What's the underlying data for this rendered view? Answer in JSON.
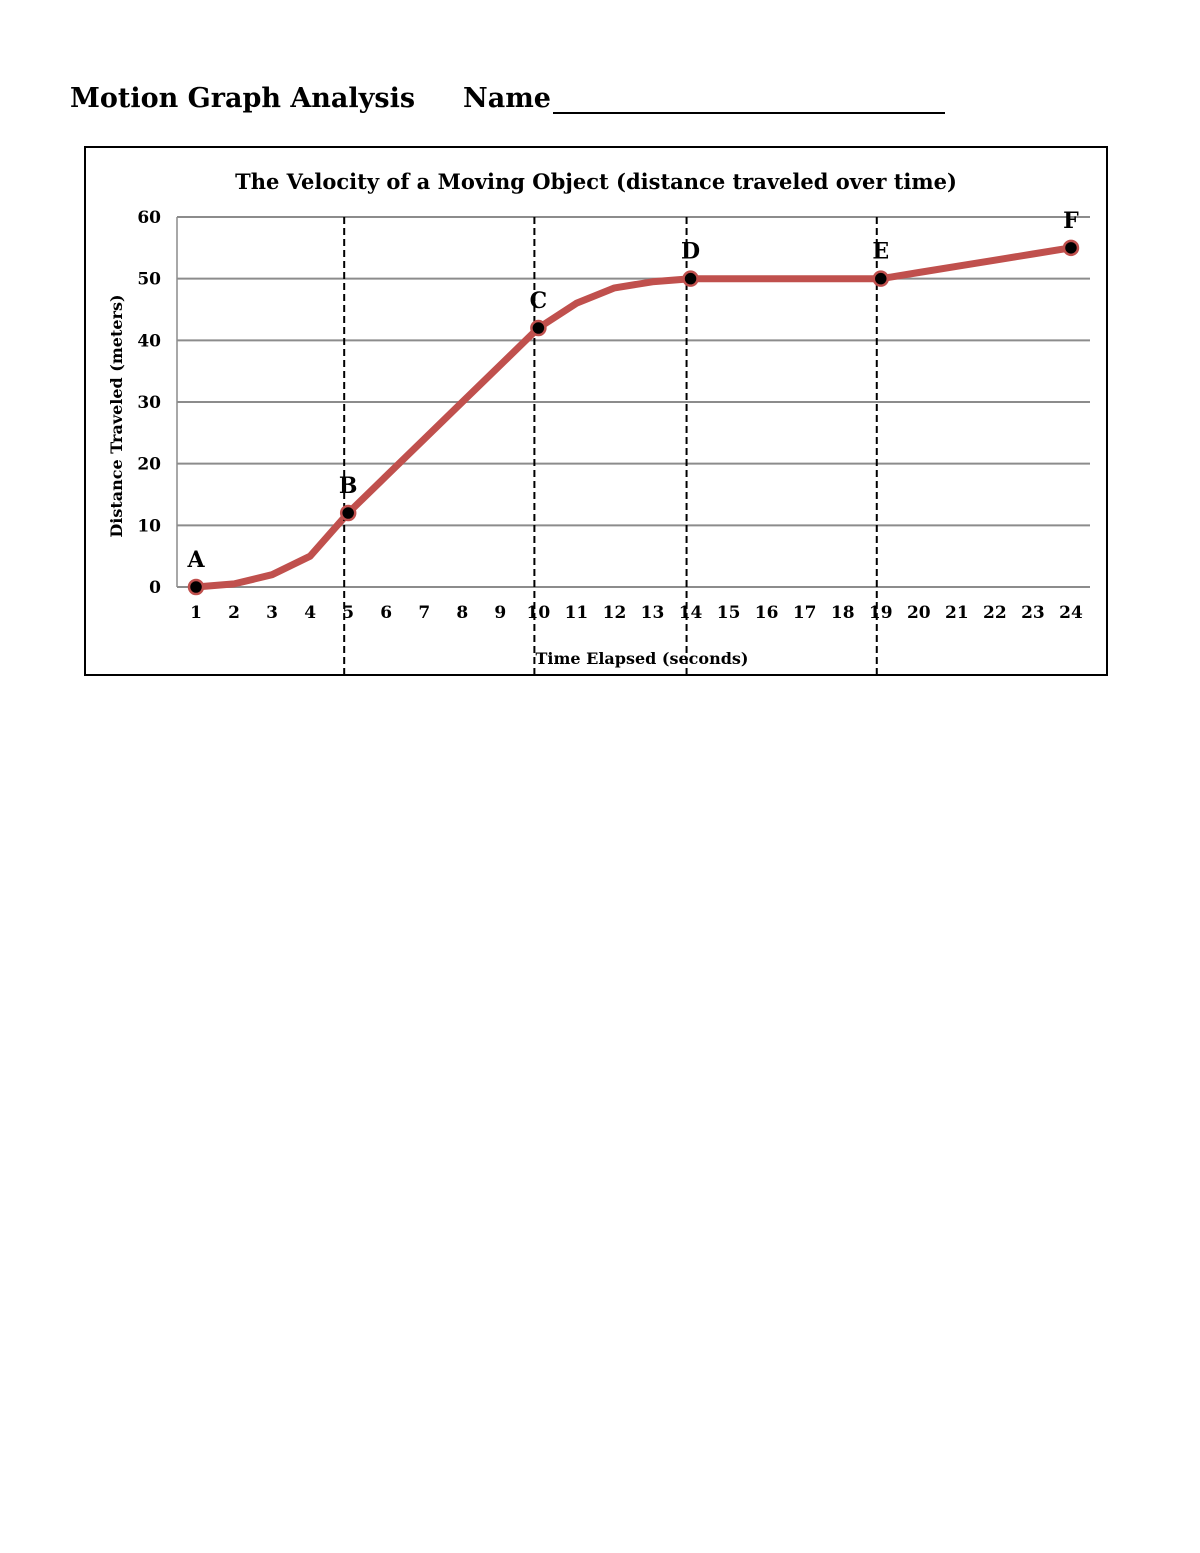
{
  "worksheet": {
    "title": "Motion Graph Analysis",
    "name_label": "Name"
  },
  "chart_data": {
    "type": "line",
    "title": "The Velocity of a Moving Object (distance traveled over time)",
    "xlabel": "Time Elapsed (seconds)",
    "ylabel": "Distance Traveled (meters)",
    "categories": [
      "1",
      "2",
      "3",
      "4",
      "5",
      "6",
      "7",
      "8",
      "9",
      "10",
      "11",
      "12",
      "13",
      "14",
      "15",
      "16",
      "17",
      "18",
      "19",
      "20",
      "21",
      "22",
      "23",
      "24"
    ],
    "x": [
      1,
      2,
      3,
      4,
      5,
      6,
      7,
      8,
      9,
      10,
      11,
      12,
      13,
      14,
      15,
      16,
      17,
      18,
      19,
      20,
      21,
      22,
      23,
      24
    ],
    "series": [
      {
        "values": [
          0,
          0.5,
          2,
          5,
          12,
          18,
          24,
          30,
          36,
          42,
          46,
          48.5,
          49.5,
          50,
          50,
          50,
          50,
          50,
          50,
          51,
          52,
          53,
          54,
          55
        ]
      }
    ],
    "ylim": [
      0,
      60
    ],
    "yticks": [
      0,
      10,
      20,
      30,
      40,
      50,
      60
    ],
    "grid": true,
    "legend": "none",
    "line_color": "#c0504d",
    "marker_color": "#000000",
    "points": [
      {
        "label": "A",
        "x": 1,
        "y": 0
      },
      {
        "label": "B",
        "x": 5,
        "y": 12
      },
      {
        "label": "C",
        "x": 10,
        "y": 42
      },
      {
        "label": "D",
        "x": 14,
        "y": 50
      },
      {
        "label": "E",
        "x": 19,
        "y": 50
      },
      {
        "label": "F",
        "x": 24,
        "y": 55
      }
    ],
    "divider_x": [
      5,
      10,
      14,
      19
    ]
  }
}
